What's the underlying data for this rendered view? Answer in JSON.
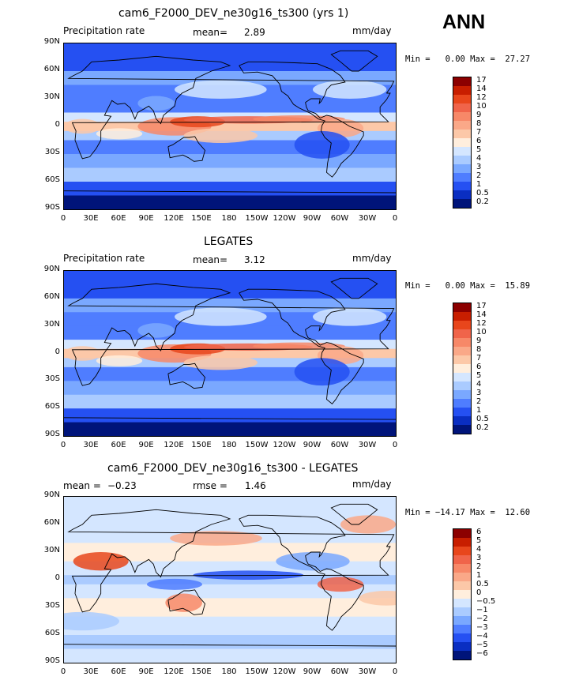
{
  "season_label": "ANN",
  "panels": [
    {
      "title": "cam6_F2000_DEV_ne30g16_ts300 (yrs 1)",
      "left_label": "Precipitation rate",
      "stat1_label": "mean=",
      "stat1_value": "2.89",
      "stat2_label": "",
      "stat2_value": "",
      "units": "mm/day",
      "minmax": "Min =   0.00 Max =  27.27",
      "scheme": "abs"
    },
    {
      "title": "LEGATES",
      "left_label": "Precipitation rate",
      "stat1_label": "mean=",
      "stat1_value": "3.12",
      "stat2_label": "",
      "stat2_value": "",
      "units": "mm/day",
      "minmax": "Min =   0.00 Max =  15.89",
      "scheme": "abs"
    },
    {
      "title": "cam6_F2000_DEV_ne30g16_ts300 - LEGATES",
      "left_label": "",
      "stat1_label": "mean =",
      "stat1_value": "−0.23",
      "stat2_label": "rmse =",
      "stat2_value": "1.46",
      "units": "mm/day",
      "minmax": "Min = −14.17 Max =  12.60",
      "scheme": "diff"
    }
  ],
  "lat_ticks": [
    "90N",
    "60N",
    "30N",
    "0",
    "30S",
    "60S",
    "90S"
  ],
  "lon_ticks": [
    "0",
    "30E",
    "60E",
    "90E",
    "120E",
    "150E",
    "180",
    "150W",
    "120W",
    "90W",
    "60W",
    "30W",
    "0"
  ],
  "chart_data": [
    {
      "type": "heatmap",
      "title": "cam6_F2000_DEV_ne30g16_ts300 (yrs 1)",
      "variable": "Precipitation rate",
      "units": "mm/day",
      "mean": 2.89,
      "min": 0.0,
      "max": 27.27,
      "xlim": [
        0,
        360
      ],
      "ylim": [
        -90,
        90
      ],
      "colorbar_levels": [
        "17",
        "14",
        "12",
        "10",
        "9",
        "8",
        "7",
        "6",
        "5",
        "4",
        "3",
        "2",
        "1",
        "0.5",
        "0.2"
      ],
      "colorbar_colors": [
        "#8c0000",
        "#c81e00",
        "#e8461c",
        "#f0644a",
        "#f78868",
        "#faa888",
        "#fcc8a8",
        "#ffeedd",
        "#d4e6ff",
        "#aacbff",
        "#7aa8ff",
        "#4f7dff",
        "#2550f2",
        "#0a2ec2",
        "#00147a"
      ]
    },
    {
      "type": "heatmap",
      "title": "LEGATES",
      "variable": "Precipitation rate",
      "units": "mm/day",
      "mean": 3.12,
      "min": 0.0,
      "max": 15.89,
      "xlim": [
        0,
        360
      ],
      "ylim": [
        -90,
        90
      ],
      "colorbar_levels": [
        "17",
        "14",
        "12",
        "10",
        "9",
        "8",
        "7",
        "6",
        "5",
        "4",
        "3",
        "2",
        "1",
        "0.5",
        "0.2"
      ],
      "colorbar_colors": [
        "#8c0000",
        "#c81e00",
        "#e8461c",
        "#f0644a",
        "#f78868",
        "#faa888",
        "#fcc8a8",
        "#ffeedd",
        "#d4e6ff",
        "#aacbff",
        "#7aa8ff",
        "#4f7dff",
        "#2550f2",
        "#0a2ec2",
        "#00147a"
      ]
    },
    {
      "type": "heatmap",
      "title": "cam6_F2000_DEV_ne30g16_ts300 - LEGATES",
      "units": "mm/day",
      "mean": -0.23,
      "rmse": 1.46,
      "min": -14.17,
      "max": 12.6,
      "xlim": [
        0,
        360
      ],
      "ylim": [
        -90,
        90
      ],
      "colorbar_levels": [
        "6",
        "5",
        "4",
        "3",
        "2",
        "1",
        "0.5",
        "0",
        "−0.5",
        "−1",
        "−2",
        "−3",
        "−4",
        "−5",
        "−6"
      ],
      "colorbar_colors": [
        "#8c0000",
        "#c81e00",
        "#e8461c",
        "#f0644a",
        "#f78868",
        "#faa888",
        "#fcc8a8",
        "#ffeedd",
        "#d4e6ff",
        "#aacbff",
        "#7aa8ff",
        "#4f7dff",
        "#2550f2",
        "#0a2ec2",
        "#00147a"
      ]
    }
  ]
}
